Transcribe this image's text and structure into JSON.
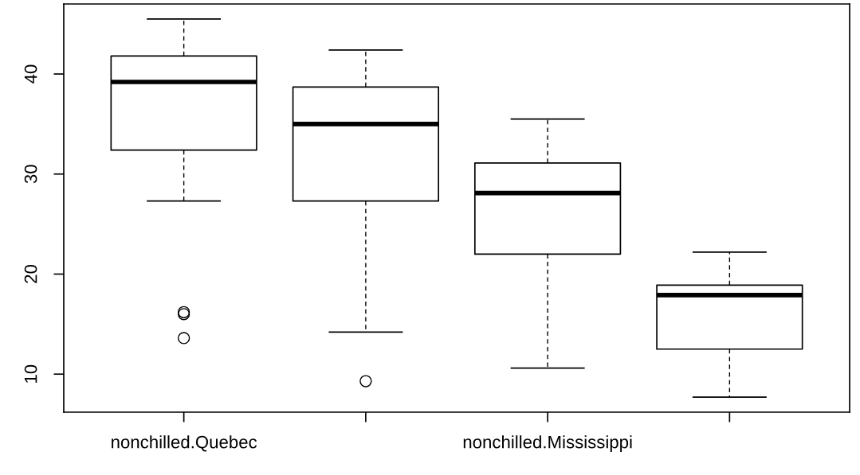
{
  "chart_data": {
    "type": "box",
    "categories": [
      "nonchilled.Quebec",
      null,
      "nonchilled.Mississippi",
      null
    ],
    "boxes": [
      {
        "low": 27.3,
        "q1": 32.4,
        "median": 39.2,
        "q3": 41.8,
        "high": 45.5,
        "outliers": [
          16.2,
          16.0,
          13.6
        ]
      },
      {
        "low": 14.2,
        "q1": 27.3,
        "median": 35.0,
        "q3": 38.7,
        "high": 42.4,
        "outliers": [
          9.3
        ]
      },
      {
        "low": 10.6,
        "q1": 22.0,
        "median": 28.1,
        "q3": 31.1,
        "high": 35.5
      },
      {
        "low": 7.7,
        "q1": 12.5,
        "median": 17.9,
        "q3": 18.9,
        "high": 22.2
      }
    ],
    "ylim": [
      6.2,
      47.0
    ],
    "yticks": [
      10,
      20,
      30,
      40
    ],
    "grid": false
  }
}
